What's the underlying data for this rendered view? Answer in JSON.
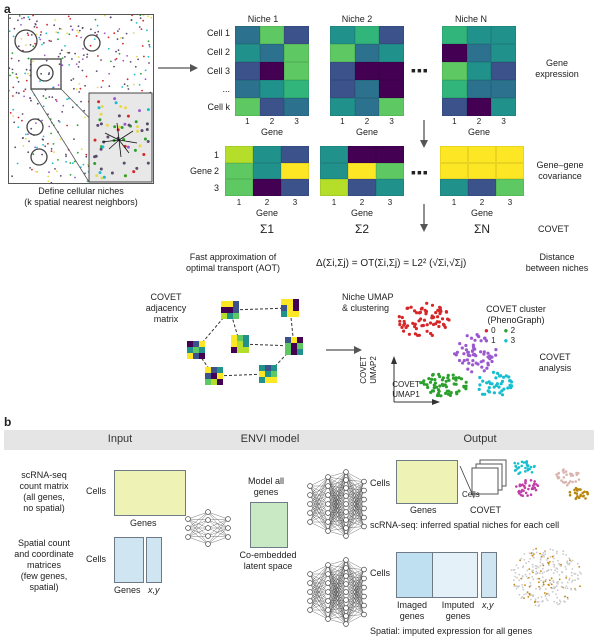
{
  "panel_a": {
    "letter": "a",
    "niches": [
      "Niche 1",
      "Niche 2",
      "Niche N"
    ],
    "cells": [
      "Cell 1",
      "Cell 2",
      "Cell 3",
      "...",
      "Cell k"
    ],
    "gene_ticks": [
      "1",
      "2",
      "3"
    ],
    "gene_axis": "Gene",
    "gene_expression": "Gene\nexpression",
    "gene_gene_cov": "Gene–gene\ncovariance",
    "cov_row_label": "Gene",
    "sigma_labels": [
      "Σ1",
      "Σ2",
      "ΣN"
    ],
    "covet_label": "COVET",
    "define_niches": "Define cellular niches\n(k spatial nearest neighbors)",
    "fast_approx": "Fast approximation of\noptimal transport (AOT)",
    "formula": "Δ(Σi,Σj) = OT(Σi,Σj) = L2² (√Σi,√Σj)",
    "distance_between": "Distance\nbetween niches",
    "adjacency": "COVET\nadjacency\nmatrix",
    "niche_umap": "Niche UMAP\n& clustering",
    "covet_cluster": "COVET cluster\n(PhenoGraph)",
    "cluster_ids": [
      "0",
      "1",
      "2",
      "3"
    ],
    "covet_analysis": "COVET\nanalysis",
    "umap1": "COVET\nUMAP1",
    "umap2": "COVET\nUMAP2",
    "colors": {
      "c0": "#d62728",
      "c1": "#9b59d0",
      "c2": "#2ca02c",
      "c3": "#17becf"
    }
  },
  "panel_b": {
    "letter": "b",
    "headers": [
      "Input",
      "ENVI model",
      "Output"
    ],
    "scrna_matrix": "scRNA-seq\ncount matrix\n(all genes,\nno spatial)",
    "spatial_matrix": "Spatial count\nand coordinate\nmatrices\n(few genes,\nspatial)",
    "cells": "Cells",
    "genes": "Genes",
    "xy": "x,y",
    "model_all": "Model all\ngenes",
    "co_embedded": "Co-embedded\nlatent space",
    "covet": "COVET",
    "scrna_inferred": "scRNA-seq: inferred spatial niches for each cell",
    "imaged_genes": "Imaged\ngenes",
    "imputed_genes": "Imputed\ngenes",
    "spatial_imputed": "Spatial: imputed expression for all genes"
  }
}
